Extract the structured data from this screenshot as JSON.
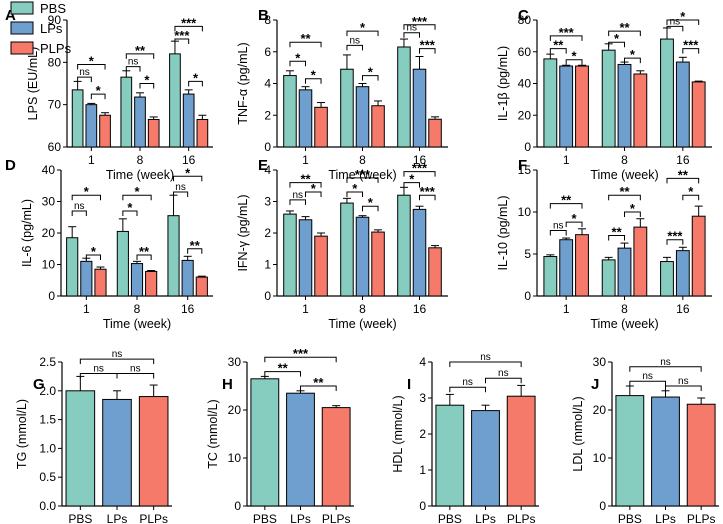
{
  "legend": [
    {
      "name": "PBS",
      "color": "#86CDBF"
    },
    {
      "name": "LPs",
      "color": "#6F9FCF"
    },
    {
      "name": "PLPs",
      "color": "#F57A6A"
    }
  ],
  "chart_data": [
    {
      "id": "A",
      "type": "bar",
      "xlabel": "Time (week)",
      "ylabel": "LPS (EU/mL)",
      "categories": [
        "1",
        "8",
        "16"
      ],
      "ylim": [
        60,
        90
      ],
      "yticks": [
        60,
        70,
        80,
        90
      ],
      "series": [
        {
          "name": "PBS",
          "values": [
            73.5,
            76.5,
            82
          ],
          "errors": [
            2,
            1.5,
            3
          ]
        },
        {
          "name": "LPs",
          "values": [
            70,
            71.8,
            72.5
          ],
          "errors": [
            0.3,
            1,
            1
          ]
        },
        {
          "name": "PLPs",
          "values": [
            67.5,
            66.5,
            66.5
          ],
          "errors": [
            0.6,
            0.6,
            1
          ]
        }
      ],
      "annotations": [
        {
          "group": 0,
          "pair": [
            0,
            1
          ],
          "text": "ns",
          "y": 76.5
        },
        {
          "group": 0,
          "pair": [
            0,
            2
          ],
          "text": "*",
          "y": 79.5
        },
        {
          "group": 0,
          "pair": [
            1,
            2
          ],
          "text": "*",
          "y": 72.5
        },
        {
          "group": 1,
          "pair": [
            0,
            1
          ],
          "text": "ns",
          "y": 79
        },
        {
          "group": 1,
          "pair": [
            0,
            2
          ],
          "text": "**",
          "y": 82
        },
        {
          "group": 1,
          "pair": [
            1,
            2
          ],
          "text": "*",
          "y": 75
        },
        {
          "group": 2,
          "pair": [
            0,
            1
          ],
          "text": "***",
          "y": 85.5
        },
        {
          "group": 2,
          "pair": [
            0,
            2
          ],
          "text": "***",
          "y": 88.5
        },
        {
          "group": 2,
          "pair": [
            1,
            2
          ],
          "text": "*",
          "y": 75.5
        }
      ]
    },
    {
      "id": "B",
      "type": "bar",
      "xlabel": "Time (week)",
      "ylabel": "TNF-α (pg/mL)",
      "categories": [
        "1",
        "8",
        "16"
      ],
      "ylim": [
        0,
        8
      ],
      "yticks": [
        0,
        2,
        4,
        6,
        8
      ],
      "series": [
        {
          "name": "PBS",
          "values": [
            4.5,
            4.9,
            6.3
          ],
          "errors": [
            0.3,
            0.9,
            0.5
          ]
        },
        {
          "name": "LPs",
          "values": [
            3.6,
            3.8,
            4.9
          ],
          "errors": [
            0.2,
            0.2,
            0.8
          ]
        },
        {
          "name": "PLPs",
          "values": [
            2.5,
            2.6,
            1.75
          ],
          "errors": [
            0.3,
            0.3,
            0.15
          ]
        }
      ],
      "annotations": [
        {
          "group": 0,
          "pair": [
            0,
            1
          ],
          "text": "*",
          "y": 5.4
        },
        {
          "group": 0,
          "pair": [
            0,
            2
          ],
          "text": "**",
          "y": 6.6
        },
        {
          "group": 0,
          "pair": [
            1,
            2
          ],
          "text": "*",
          "y": 4.3
        },
        {
          "group": 1,
          "pair": [
            0,
            1
          ],
          "text": "ns",
          "y": 6.4
        },
        {
          "group": 1,
          "pair": [
            0,
            2
          ],
          "text": "*",
          "y": 7.3
        },
        {
          "group": 1,
          "pair": [
            1,
            2
          ],
          "text": "*",
          "y": 4.5
        },
        {
          "group": 2,
          "pair": [
            0,
            1
          ],
          "text": "ns",
          "y": 7.2
        },
        {
          "group": 2,
          "pair": [
            0,
            2
          ],
          "text": "***",
          "y": 7.7
        },
        {
          "group": 2,
          "pair": [
            1,
            2
          ],
          "text": "***",
          "y": 6.2
        }
      ]
    },
    {
      "id": "C",
      "type": "bar",
      "xlabel": "Time (week)",
      "ylabel": "IL-1β (pg/mL)",
      "categories": [
        "1",
        "8",
        "16"
      ],
      "ylim": [
        0,
        80
      ],
      "yticks": [
        0,
        20,
        40,
        60,
        80
      ],
      "series": [
        {
          "name": "PBS",
          "values": [
            55.5,
            61,
            68
          ],
          "errors": [
            3,
            4,
            7
          ]
        },
        {
          "name": "LPs",
          "values": [
            51,
            52,
            53.5
          ],
          "errors": [
            0.5,
            1.5,
            3
          ]
        },
        {
          "name": "PLPs",
          "values": [
            51,
            46,
            41
          ],
          "errors": [
            0.5,
            2,
            0.5
          ]
        }
      ],
      "annotations": [
        {
          "group": 0,
          "pair": [
            0,
            1
          ],
          "text": "**",
          "y": 62
        },
        {
          "group": 0,
          "pair": [
            0,
            2
          ],
          "text": "***",
          "y": 70
        },
        {
          "group": 0,
          "pair": [
            1,
            2
          ],
          "text": "*",
          "y": 55
        },
        {
          "group": 1,
          "pair": [
            0,
            1
          ],
          "text": "*",
          "y": 66
        },
        {
          "group": 1,
          "pair": [
            0,
            2
          ],
          "text": "**",
          "y": 73
        },
        {
          "group": 1,
          "pair": [
            1,
            2
          ],
          "text": "*",
          "y": 56
        },
        {
          "group": 2,
          "pair": [
            0,
            1
          ],
          "text": "ns",
          "y": 76
        },
        {
          "group": 2,
          "pair": [
            0,
            2
          ],
          "text": "*",
          "y": 80
        },
        {
          "group": 2,
          "pair": [
            1,
            2
          ],
          "text": "***",
          "y": 62
        }
      ]
    },
    {
      "id": "D",
      "type": "bar",
      "xlabel": "Time (week)",
      "ylabel": "IL-6 (pg/mL)",
      "categories": [
        "1",
        "8",
        "16"
      ],
      "ylim": [
        0,
        40
      ],
      "yticks": [
        0,
        10,
        20,
        30,
        40
      ],
      "series": [
        {
          "name": "PBS",
          "values": [
            18.5,
            20.5,
            25.5
          ],
          "errors": [
            3.5,
            4,
            6.5
          ]
        },
        {
          "name": "LPs",
          "values": [
            11,
            10.3,
            11.3
          ],
          "errors": [
            1,
            0.7,
            1.3
          ]
        },
        {
          "name": "PLPs",
          "values": [
            8.5,
            7.8,
            6
          ],
          "errors": [
            0.7,
            0.3,
            0.3
          ]
        }
      ],
      "annotations": [
        {
          "group": 0,
          "pair": [
            0,
            1
          ],
          "text": "ns",
          "y": 27
        },
        {
          "group": 0,
          "pair": [
            0,
            2
          ],
          "text": "*",
          "y": 32
        },
        {
          "group": 0,
          "pair": [
            1,
            2
          ],
          "text": "*",
          "y": 13
        },
        {
          "group": 1,
          "pair": [
            0,
            1
          ],
          "text": "*",
          "y": 27
        },
        {
          "group": 1,
          "pair": [
            0,
            2
          ],
          "text": "*",
          "y": 32
        },
        {
          "group": 1,
          "pair": [
            1,
            2
          ],
          "text": "**",
          "y": 13
        },
        {
          "group": 2,
          "pair": [
            0,
            1
          ],
          "text": "ns",
          "y": 33
        },
        {
          "group": 2,
          "pair": [
            0,
            2
          ],
          "text": "*",
          "y": 38
        },
        {
          "group": 2,
          "pair": [
            1,
            2
          ],
          "text": "**",
          "y": 15
        }
      ]
    },
    {
      "id": "E",
      "type": "bar",
      "xlabel": "Time (week)",
      "ylabel": "IFN-γ (pg/mL)",
      "categories": [
        "1",
        "8",
        "16"
      ],
      "ylim": [
        0,
        4
      ],
      "yticks": [
        0,
        1,
        2,
        3,
        4
      ],
      "series": [
        {
          "name": "PBS",
          "values": [
            2.6,
            2.95,
            3.2
          ],
          "errors": [
            0.1,
            0.15,
            0.25
          ]
        },
        {
          "name": "LPs",
          "values": [
            2.42,
            2.5,
            2.75
          ],
          "errors": [
            0.1,
            0.05,
            0.1
          ]
        },
        {
          "name": "PLPs",
          "values": [
            1.9,
            2.03,
            1.53
          ],
          "errors": [
            0.1,
            0.07,
            0.07
          ]
        }
      ],
      "annotations": [
        {
          "group": 0,
          "pair": [
            0,
            1
          ],
          "text": "ns",
          "y": 3.05
        },
        {
          "group": 0,
          "pair": [
            0,
            2
          ],
          "text": "**",
          "y": 3.6
        },
        {
          "group": 0,
          "pair": [
            1,
            2
          ],
          "text": "*",
          "y": 3.3
        },
        {
          "group": 1,
          "pair": [
            0,
            1
          ],
          "text": "*",
          "y": 3.3
        },
        {
          "group": 1,
          "pair": [
            0,
            2
          ],
          "text": "***",
          "y": 3.75
        },
        {
          "group": 1,
          "pair": [
            1,
            2
          ],
          "text": "*",
          "y": 2.85
        },
        {
          "group": 2,
          "pair": [
            0,
            1
          ],
          "text": "*",
          "y": 3.6
        },
        {
          "group": 2,
          "pair": [
            0,
            2
          ],
          "text": "***",
          "y": 3.95
        },
        {
          "group": 2,
          "pair": [
            1,
            2
          ],
          "text": "***",
          "y": 3.2
        }
      ]
    },
    {
      "id": "F",
      "type": "bar",
      "xlabel": "Time (week)",
      "ylabel": "IL-10 (pg/mL)",
      "categories": [
        "1",
        "8",
        "16"
      ],
      "ylim": [
        0,
        15
      ],
      "yticks": [
        0,
        5,
        10,
        15
      ],
      "series": [
        {
          "name": "PBS",
          "values": [
            4.7,
            4.3,
            4.1
          ],
          "errors": [
            0.2,
            0.3,
            0.5
          ]
        },
        {
          "name": "LPs",
          "values": [
            6.7,
            5.7,
            5.4
          ],
          "errors": [
            0.2,
            0.6,
            0.4
          ]
        },
        {
          "name": "PLPs",
          "values": [
            7.3,
            8.2,
            9.5
          ],
          "errors": [
            0.7,
            1,
            1.2
          ]
        }
      ],
      "annotations": [
        {
          "group": 0,
          "pair": [
            0,
            1
          ],
          "text": "ns",
          "y": 7.8
        },
        {
          "group": 0,
          "pair": [
            0,
            2
          ],
          "text": "**",
          "y": 11
        },
        {
          "group": 0,
          "pair": [
            1,
            2
          ],
          "text": "*",
          "y": 8.8
        },
        {
          "group": 1,
          "pair": [
            0,
            1
          ],
          "text": "**",
          "y": 7.2
        },
        {
          "group": 1,
          "pair": [
            0,
            2
          ],
          "text": "**",
          "y": 12
        },
        {
          "group": 1,
          "pair": [
            1,
            2
          ],
          "text": "*",
          "y": 10
        },
        {
          "group": 2,
          "pair": [
            0,
            1
          ],
          "text": "***",
          "y": 6.7
        },
        {
          "group": 2,
          "pair": [
            0,
            2
          ],
          "text": "**",
          "y": 14
        },
        {
          "group": 2,
          "pair": [
            1,
            2
          ],
          "text": "*",
          "y": 12
        }
      ]
    },
    {
      "id": "G",
      "type": "bar",
      "xlabel": "",
      "ylabel": "TG (mmol/L)",
      "categories": [
        "PBS",
        "LPs",
        "PLPs"
      ],
      "ylim": [
        0,
        2.5
      ],
      "yticks": [
        "0.0",
        "0.5",
        "1.0",
        "1.5",
        "2.0",
        "2.5"
      ],
      "values": [
        2.0,
        1.85,
        1.9
      ],
      "errors": [
        0.25,
        0.15,
        0.2
      ],
      "annotations": [
        {
          "pair": [
            0,
            1
          ],
          "text": "ns",
          "y": 2.3
        },
        {
          "pair": [
            1,
            2
          ],
          "text": "ns",
          "y": 2.3
        },
        {
          "pair": [
            0,
            2
          ],
          "text": "ns",
          "y": 2.55
        }
      ]
    },
    {
      "id": "H",
      "type": "bar",
      "xlabel": "",
      "ylabel": "TC (mmol/L)",
      "categories": [
        "PBS",
        "LPs",
        "PLPs"
      ],
      "ylim": [
        0,
        30
      ],
      "yticks": [
        0,
        10,
        20,
        30
      ],
      "values": [
        26.5,
        23.5,
        20.5
      ],
      "errors": [
        0.5,
        0.5,
        0.4
      ],
      "annotations": [
        {
          "pair": [
            0,
            1
          ],
          "text": "**",
          "y": 28
        },
        {
          "pair": [
            1,
            2
          ],
          "text": "**",
          "y": 25
        },
        {
          "pair": [
            0,
            2
          ],
          "text": "***",
          "y": 31
        }
      ]
    },
    {
      "id": "I",
      "type": "bar",
      "xlabel": "",
      "ylabel": "HDL (mmol/L)",
      "categories": [
        "PBS",
        "LPs",
        "PLPs"
      ],
      "ylim": [
        0,
        4
      ],
      "yticks": [
        0,
        1,
        2,
        3,
        4
      ],
      "values": [
        2.8,
        2.65,
        3.05
      ],
      "errors": [
        0.3,
        0.15,
        0.3
      ],
      "annotations": [
        {
          "pair": [
            0,
            1
          ],
          "text": "ns",
          "y": 3.3
        },
        {
          "pair": [
            1,
            2
          ],
          "text": "ns",
          "y": 3.55
        },
        {
          "pair": [
            0,
            2
          ],
          "text": "ns",
          "y": 4.0
        }
      ]
    },
    {
      "id": "J",
      "type": "bar",
      "xlabel": "",
      "ylabel": "LDL (mmol/L)",
      "categories": [
        "PBS",
        "LPs",
        "PLPs"
      ],
      "ylim": [
        0,
        30
      ],
      "yticks": [
        0,
        10,
        20,
        30
      ],
      "values": [
        23,
        22.7,
        21.2
      ],
      "errors": [
        2,
        1.3,
        1.3
      ],
      "annotations": [
        {
          "pair": [
            0,
            1
          ],
          "text": "ns",
          "y": 26
        },
        {
          "pair": [
            1,
            2
          ],
          "text": "ns",
          "y": 25
        },
        {
          "pair": [
            0,
            2
          ],
          "text": "ns",
          "y": 29
        }
      ]
    }
  ]
}
